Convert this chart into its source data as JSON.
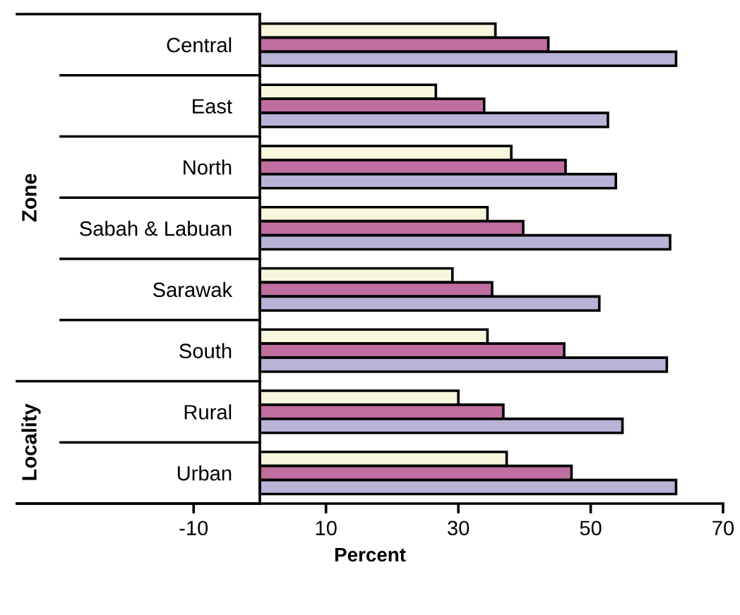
{
  "chart_data": {
    "type": "bar",
    "orientation": "horizontal",
    "categories": [
      "Central",
      "East",
      "North",
      "Sabah & Labuan",
      "Sarawak",
      "South",
      "Rural",
      "Urban"
    ],
    "series": [
      {
        "color": "#f8f6dc",
        "values": [
          35.6,
          26.6,
          38.0,
          34.4,
          29.1,
          34.4,
          30.0,
          37.3
        ]
      },
      {
        "color": "#c06ea0",
        "values": [
          43.6,
          33.9,
          46.2,
          39.8,
          35.1,
          46.0,
          36.8,
          47.1
        ]
      },
      {
        "color": "#b8b4d8",
        "values": [
          62.9,
          52.6,
          53.8,
          62.0,
          51.3,
          61.5,
          54.8,
          62.9
        ]
      }
    ],
    "xlabel": "Percent",
    "xlim": [
      -36.7,
      70
    ],
    "xticks": [
      -10,
      10,
      30,
      50,
      70
    ],
    "annotations": [
      "Zone",
      "Locality"
    ],
    "grid": false,
    "legend": false
  }
}
